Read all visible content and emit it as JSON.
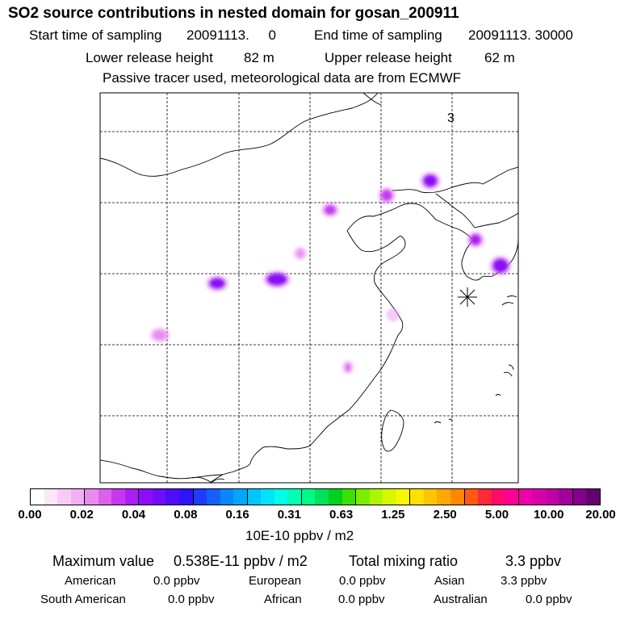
{
  "header": {
    "title": "SO2 source contributions in nested domain for gosan_200911",
    "start_label": "Start time of sampling",
    "start_value": "20091113.     0",
    "end_label": "End time of sampling",
    "end_value": "20091113. 30000",
    "lower_label": "Lower release height",
    "lower_value": "82 m",
    "upper_label": "Upper release height",
    "upper_value": "62 m",
    "note": "Passive tracer used, meteorological data are from ECMWF"
  },
  "map": {
    "panel_label": "3",
    "station_marker": "asterisk-marker",
    "plumes": [
      {
        "name": "plume-west-1",
        "intensity": 0.06
      },
      {
        "name": "plume-west-2",
        "intensity": 0.05
      },
      {
        "name": "plume-central-west",
        "intensity": 0.015
      },
      {
        "name": "plume-beijing",
        "intensity": 0.03
      },
      {
        "name": "plume-northeast",
        "intensity": 0.05
      },
      {
        "name": "plume-hebei",
        "intensity": 0.035
      },
      {
        "name": "plume-shaanxi",
        "intensity": 0.01
      },
      {
        "name": "plume-korea-north",
        "intensity": 0.045
      },
      {
        "name": "plume-korea-south",
        "intensity": 0.055
      },
      {
        "name": "plume-shanghai",
        "intensity": 0.008
      },
      {
        "name": "plume-south",
        "intensity": 0.02
      }
    ]
  },
  "legend": {
    "tick_labels": [
      "0.00",
      "0.02",
      "0.04",
      "0.08",
      "0.16",
      "0.31",
      "0.63",
      "1.25",
      "2.50",
      "5.00",
      "10.00",
      "20.00"
    ],
    "colors": [
      "#ffffff",
      "#fbe6fb",
      "#f6ccf6",
      "#f0b2f2",
      "#e98aee",
      "#dc60ea",
      "#c637f0",
      "#ad1cf4",
      "#8e0cf7",
      "#6f0cf9",
      "#4f0cfa",
      "#2d14fb",
      "#1f3cfb",
      "#1560fb",
      "#0a86fb",
      "#04a6fb",
      "#00c4fc",
      "#00e2fb",
      "#00ffe6",
      "#00ffb4",
      "#00f986",
      "#00e05a",
      "#00d020",
      "#3ae000",
      "#7aee00",
      "#b0f500",
      "#d8f800",
      "#f6f800",
      "#ffe000",
      "#ffc400",
      "#ffa800",
      "#ff8800",
      "#ff5a10",
      "#ff2838",
      "#ff0a6a",
      "#ff0096",
      "#f000a8",
      "#d800a8",
      "#c000a4",
      "#a2009a",
      "#84008a",
      "#640070"
    ],
    "units": "10E-10 ppbv / m2"
  },
  "stats": {
    "max_label": "Maximum value",
    "max_value": "0.538E-11 ppbv / m2",
    "total_label": "Total mixing ratio",
    "total_value": "3.3 ppbv",
    "regions": [
      {
        "name": "American",
        "value": "0.0 ppbv"
      },
      {
        "name": "European",
        "value": "0.0 ppbv"
      },
      {
        "name": "Asian",
        "value": "3.3 ppbv"
      },
      {
        "name": "South American",
        "value": "0.0 ppbv"
      },
      {
        "name": "African",
        "value": "0.0 ppbv"
      },
      {
        "name": "Australian",
        "value": "0.0 ppbv"
      }
    ]
  }
}
